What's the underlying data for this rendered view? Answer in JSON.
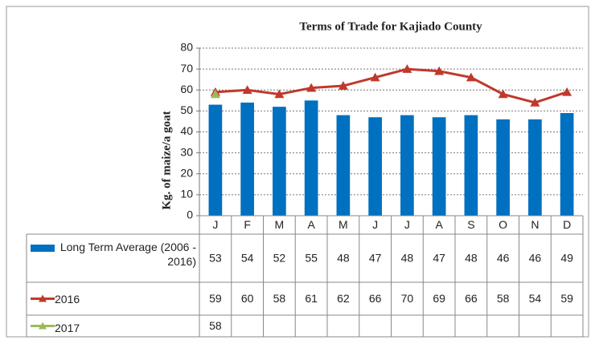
{
  "chart_data": {
    "type": "combo",
    "title": "Terms of Trade for Kajiado County",
    "y_label": "Kg. of maize/a goat",
    "categories": [
      "J",
      "F",
      "M",
      "A",
      "M",
      "J",
      "J",
      "A",
      "S",
      "O",
      "N",
      "D"
    ],
    "series": [
      {
        "name": "Long Term Average (2006 - 2016)",
        "type": "bar",
        "color": "#0070c0",
        "values": [
          53,
          54,
          52,
          55,
          48,
          47,
          48,
          47,
          48,
          46,
          46,
          49
        ]
      },
      {
        "name": "2016",
        "type": "line",
        "color": "#c0392b",
        "values": [
          59,
          60,
          58,
          61,
          62,
          66,
          70,
          69,
          66,
          58,
          54,
          59
        ]
      },
      {
        "name": "2017",
        "type": "line",
        "color": "#9bbb59",
        "values": [
          58,
          null,
          null,
          null,
          null,
          null,
          null,
          null,
          null,
          null,
          null,
          null
        ]
      }
    ],
    "ylim": [
      0,
      80
    ],
    "yticks": [
      0,
      10,
      20,
      30,
      40,
      50,
      60,
      70,
      80
    ],
    "grid": true,
    "data_table": true
  }
}
